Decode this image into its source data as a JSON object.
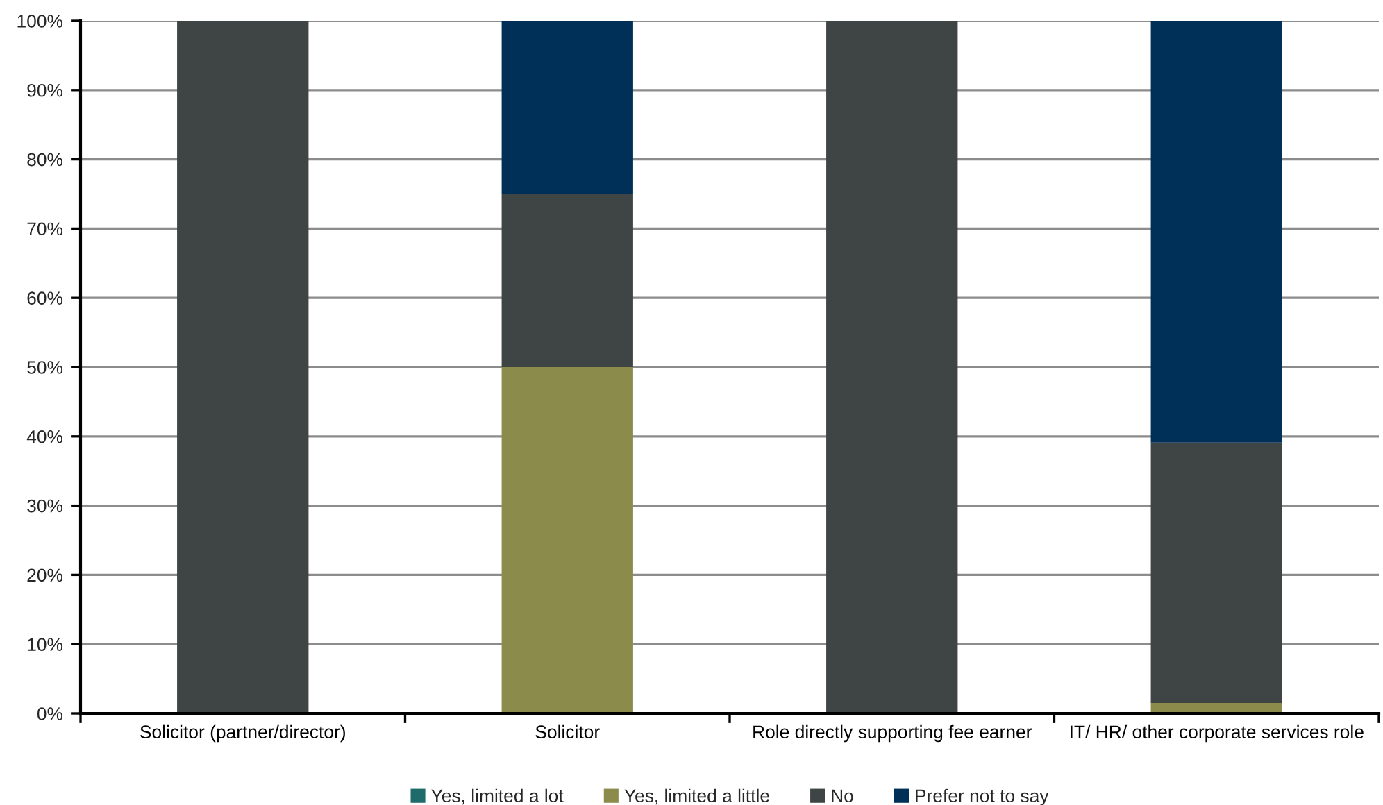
{
  "chart_data": {
    "type": "bar",
    "stacked": true,
    "categories": [
      "Solicitor (partner/director)",
      "Solicitor",
      "Role directly supporting fee earner",
      "IT/ HR/ other corporate services role"
    ],
    "series": [
      {
        "name": "Yes, limited a lot",
        "color": "#1f6b6b",
        "values": [
          0,
          0,
          0,
          0
        ]
      },
      {
        "name": "Yes, limited a little",
        "color": "#8b8c4b",
        "values": [
          0,
          50,
          0,
          1.5
        ]
      },
      {
        "name": "No",
        "color": "#3f4444",
        "values": [
          100,
          25,
          100,
          37.6
        ]
      },
      {
        "name": "Prefer not to say",
        "color": "#002f57",
        "values": [
          0,
          25,
          0,
          60.9
        ]
      }
    ],
    "ylim": [
      0,
      100
    ],
    "yticks": [
      {
        "value": 0,
        "label": "0%"
      },
      {
        "value": 10,
        "label": "10%"
      },
      {
        "value": 20,
        "label": "20%"
      },
      {
        "value": 30,
        "label": "30%"
      },
      {
        "value": 40,
        "label": "40%"
      },
      {
        "value": 50,
        "label": "50%"
      },
      {
        "value": 60,
        "label": "60%"
      },
      {
        "value": 70,
        "label": "70%"
      },
      {
        "value": 80,
        "label": "80%"
      },
      {
        "value": 90,
        "label": "90%"
      },
      {
        "value": 100,
        "label": "100%"
      }
    ],
    "grid": "y",
    "legend": "bottom"
  }
}
